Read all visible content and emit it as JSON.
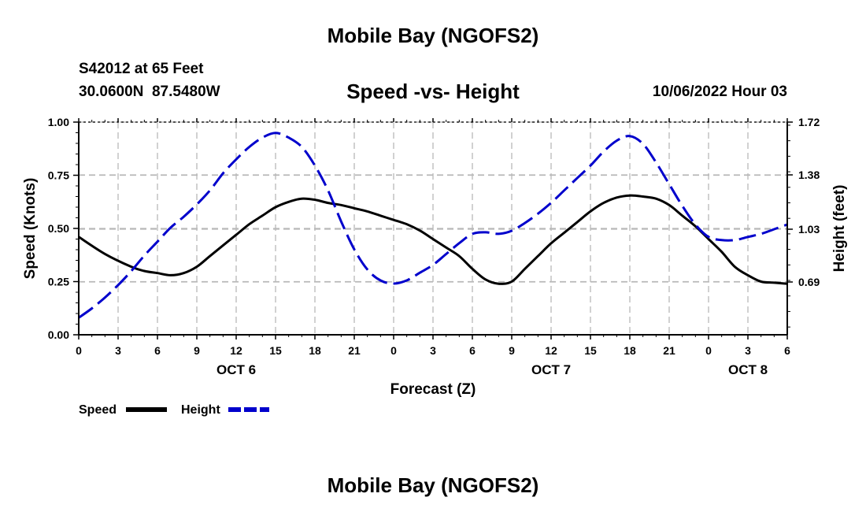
{
  "header": {
    "top_title": "Mobile Bay (NGOFS2)",
    "station_line": "S42012 at 65 Feet",
    "coords_line": "30.0600N  87.5480W",
    "chart_title": "Speed -vs- Height",
    "timestamp": "10/06/2022 Hour 03"
  },
  "footer": {
    "bottom_title": "Mobile Bay (NGOFS2)"
  },
  "legend": {
    "speed_label": "Speed",
    "height_label": "Height"
  },
  "chart_data": {
    "type": "line",
    "title": "Speed -vs- Height",
    "xlabel": "Forecast (Z)",
    "ylabel_left": "Speed (Knots)",
    "ylabel_right": "Height (feet)",
    "x_range_hours": [
      0,
      54
    ],
    "ylim_left": [
      0.0,
      1.0
    ],
    "ylim_right": [
      0.35,
      1.72
    ],
    "x_ticks": [
      {
        "h": 0,
        "label": "0"
      },
      {
        "h": 3,
        "label": "3"
      },
      {
        "h": 6,
        "label": "6"
      },
      {
        "h": 9,
        "label": "9"
      },
      {
        "h": 12,
        "label": "12"
      },
      {
        "h": 15,
        "label": "15"
      },
      {
        "h": 18,
        "label": "18"
      },
      {
        "h": 21,
        "label": "21"
      },
      {
        "h": 24,
        "label": "0"
      },
      {
        "h": 27,
        "label": "3"
      },
      {
        "h": 30,
        "label": "6"
      },
      {
        "h": 33,
        "label": "9"
      },
      {
        "h": 36,
        "label": "12"
      },
      {
        "h": 39,
        "label": "15"
      },
      {
        "h": 42,
        "label": "18"
      },
      {
        "h": 45,
        "label": "21"
      },
      {
        "h": 48,
        "label": "0"
      },
      {
        "h": 51,
        "label": "3"
      },
      {
        "h": 54,
        "label": "6"
      }
    ],
    "day_labels": [
      {
        "h": 12,
        "label": "OCT 6"
      },
      {
        "h": 36,
        "label": "OCT 7"
      },
      {
        "h": 51,
        "label": "OCT 8"
      }
    ],
    "left_ticks": [
      {
        "v": 0.0,
        "label": "0.00"
      },
      {
        "v": 0.25,
        "label": "0.25"
      },
      {
        "v": 0.5,
        "label": "0.50"
      },
      {
        "v": 0.75,
        "label": "0.75"
      },
      {
        "v": 1.0,
        "label": "1.00"
      }
    ],
    "right_ticks": [
      {
        "v": 0.69,
        "label": "0.69"
      },
      {
        "v": 1.03,
        "label": "1.03"
      },
      {
        "v": 1.38,
        "label": "1.38"
      },
      {
        "v": 1.72,
        "label": "1.72"
      }
    ],
    "grid": true,
    "series": [
      {
        "name": "Speed",
        "axis": "left",
        "color": "#000000",
        "style": "solid",
        "x": [
          0,
          2,
          4,
          5,
          6,
          7,
          8,
          9,
          10,
          11,
          12,
          13,
          14,
          15,
          16,
          17,
          18,
          19,
          20,
          21,
          22,
          23,
          24,
          25,
          26,
          27,
          28,
          29,
          30,
          31,
          32,
          33,
          34,
          35,
          36,
          37,
          38,
          39,
          40,
          41,
          42,
          43,
          44,
          45,
          46,
          47,
          48,
          49,
          50,
          51,
          52,
          53,
          54
        ],
        "y": [
          0.46,
          0.38,
          0.32,
          0.3,
          0.29,
          0.28,
          0.29,
          0.32,
          0.37,
          0.42,
          0.47,
          0.52,
          0.56,
          0.6,
          0.625,
          0.64,
          0.635,
          0.62,
          0.61,
          0.595,
          0.58,
          0.56,
          0.54,
          0.52,
          0.49,
          0.45,
          0.41,
          0.37,
          0.31,
          0.26,
          0.24,
          0.25,
          0.31,
          0.37,
          0.43,
          0.48,
          0.53,
          0.58,
          0.62,
          0.645,
          0.655,
          0.65,
          0.64,
          0.61,
          0.56,
          0.51,
          0.45,
          0.39,
          0.32,
          0.28,
          0.25,
          0.245,
          0.24
        ]
      },
      {
        "name": "Height",
        "axis": "right",
        "color": "#0000cc",
        "style": "dashed",
        "x": [
          0,
          1,
          2,
          3,
          4,
          5,
          6,
          7,
          8,
          9,
          10,
          11,
          12,
          13,
          14,
          15,
          16,
          17,
          18,
          19,
          20,
          21,
          22,
          23,
          24,
          25,
          26,
          27,
          28,
          29,
          30,
          31,
          32,
          33,
          34,
          35,
          36,
          37,
          38,
          39,
          40,
          41,
          42,
          43,
          44,
          45,
          46,
          47,
          48,
          49,
          50,
          51,
          52,
          53,
          54
        ],
        "y": [
          0.46,
          0.52,
          0.59,
          0.67,
          0.76,
          0.86,
          0.95,
          1.04,
          1.11,
          1.19,
          1.28,
          1.39,
          1.48,
          1.56,
          1.62,
          1.65,
          1.62,
          1.56,
          1.44,
          1.28,
          1.08,
          0.9,
          0.77,
          0.7,
          0.68,
          0.7,
          0.75,
          0.8,
          0.87,
          0.94,
          1.0,
          1.01,
          1.0,
          1.02,
          1.07,
          1.13,
          1.2,
          1.28,
          1.36,
          1.44,
          1.53,
          1.6,
          1.63,
          1.58,
          1.46,
          1.32,
          1.18,
          1.06,
          0.98,
          0.96,
          0.96,
          0.98,
          1.0,
          1.03,
          1.06
        ]
      }
    ]
  }
}
